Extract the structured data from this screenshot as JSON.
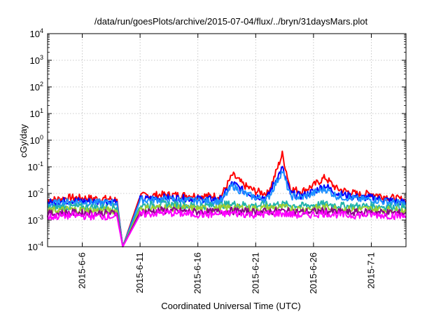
{
  "chart_data": {
    "type": "line",
    "title": "/data/run/goesPlots/archive/2015-07-04/flux/../bryn/31daysMars.plot",
    "xlabel": "Coordinated Universal Time (UTC)",
    "ylabel": "cGy/day",
    "yscale": "log",
    "ylim": [
      0.0001,
      10000
    ],
    "xlim": [
      "2015-06-03",
      "2015-07-04"
    ],
    "grid": true,
    "legend": "none",
    "x_ticks": [
      "2015-6-6",
      "2015-6-11",
      "2015-6-16",
      "2015-6-21",
      "2015-6-26",
      "2015-7-1"
    ],
    "y_ticks": [
      {
        "value": 0.0001,
        "base": "10",
        "exp": "-4"
      },
      {
        "value": 0.001,
        "base": "10",
        "exp": "-3"
      },
      {
        "value": 0.01,
        "base": "10",
        "exp": "-2"
      },
      {
        "value": 0.1,
        "base": "10",
        "exp": "-1"
      },
      {
        "value": 1,
        "base": "10",
        "exp": "0"
      },
      {
        "value": 10,
        "base": "10",
        "exp": "1"
      },
      {
        "value": 100,
        "base": "10",
        "exp": "2"
      },
      {
        "value": 1000,
        "base": "10",
        "exp": "3"
      },
      {
        "value": 10000,
        "base": "10",
        "exp": "4"
      }
    ],
    "series": [
      {
        "color": "#ff0000",
        "x": [
          "2015-06-03",
          "2015-06-05",
          "2015-06-07",
          "2015-06-09",
          "2015-06-09.5",
          "2015-06-11",
          "2015-06-13",
          "2015-06-15",
          "2015-06-17",
          "2015-06-18",
          "2015-06-19",
          "2015-06-20",
          "2015-06-21",
          "2015-06-22",
          "2015-06-22.5",
          "2015-06-23.3",
          "2015-06-24",
          "2015-06-25",
          "2015-06-26",
          "2015-06-27",
          "2015-06-28",
          "2015-06-30",
          "2015-07-01",
          "2015-07-02",
          "2015-07-04"
        ],
        "y": [
          0.0055,
          0.007,
          0.0065,
          0.006,
          0.0001,
          0.008,
          0.009,
          0.0085,
          0.008,
          0.008,
          0.05,
          0.02,
          0.012,
          0.01,
          0.03,
          0.3,
          0.015,
          0.012,
          0.02,
          0.04,
          0.015,
          0.009,
          0.01,
          0.008,
          0.0055
        ]
      },
      {
        "color": "#0000ff",
        "x": [
          "2015-06-03",
          "2015-06-05",
          "2015-06-07",
          "2015-06-09",
          "2015-06-09.5",
          "2015-06-11",
          "2015-06-13",
          "2015-06-15",
          "2015-06-17",
          "2015-06-18",
          "2015-06-19",
          "2015-06-20",
          "2015-06-21",
          "2015-06-22",
          "2015-06-22.5",
          "2015-06-23.3",
          "2015-06-24",
          "2015-06-25",
          "2015-06-26",
          "2015-06-27",
          "2015-06-28",
          "2015-06-30",
          "2015-07-01",
          "2015-07-02",
          "2015-07-04"
        ],
        "y": [
          0.0045,
          0.0055,
          0.005,
          0.005,
          0.0001,
          0.006,
          0.007,
          0.0065,
          0.006,
          0.006,
          0.025,
          0.012,
          0.008,
          0.007,
          0.02,
          0.09,
          0.01,
          0.008,
          0.012,
          0.02,
          0.01,
          0.007,
          0.007,
          0.006,
          0.0045
        ]
      },
      {
        "color": "#1e90ff",
        "x": [
          "2015-06-03",
          "2015-06-05",
          "2015-06-07",
          "2015-06-09",
          "2015-06-09.5",
          "2015-06-11",
          "2015-06-13",
          "2015-06-15",
          "2015-06-17",
          "2015-06-18",
          "2015-06-19",
          "2015-06-20",
          "2015-06-21",
          "2015-06-22",
          "2015-06-22.5",
          "2015-06-23.3",
          "2015-06-24",
          "2015-06-25",
          "2015-06-26",
          "2015-06-27",
          "2015-06-28",
          "2015-06-30",
          "2015-07-01",
          "2015-07-02",
          "2015-07-04"
        ],
        "y": [
          0.004,
          0.005,
          0.0045,
          0.0045,
          0.0001,
          0.0055,
          0.006,
          0.0055,
          0.005,
          0.005,
          0.02,
          0.01,
          0.007,
          0.006,
          0.015,
          0.07,
          0.008,
          0.007,
          0.01,
          0.015,
          0.008,
          0.006,
          0.006,
          0.005,
          0.004
        ]
      },
      {
        "color": "#20b2aa",
        "x": [
          "2015-06-03",
          "2015-06-05",
          "2015-06-07",
          "2015-06-09",
          "2015-06-09.5",
          "2015-06-11",
          "2015-06-13",
          "2015-06-15",
          "2015-06-17",
          "2015-06-19",
          "2015-06-21",
          "2015-06-23",
          "2015-06-25",
          "2015-06-27",
          "2015-06-29",
          "2015-07-01",
          "2015-07-04"
        ],
        "y": [
          0.0028,
          0.0032,
          0.003,
          0.003,
          0.0001,
          0.0035,
          0.004,
          0.0036,
          0.0034,
          0.004,
          0.0035,
          0.004,
          0.0034,
          0.004,
          0.0033,
          0.0034,
          0.003
        ]
      },
      {
        "color": "#9acd32",
        "x": [
          "2015-06-03",
          "2015-06-05",
          "2015-06-07",
          "2015-06-09",
          "2015-06-09.5",
          "2015-06-11",
          "2015-06-13",
          "2015-06-15",
          "2015-06-17",
          "2015-06-19",
          "2015-06-21",
          "2015-06-23",
          "2015-06-25",
          "2015-06-27",
          "2015-06-29",
          "2015-07-01",
          "2015-07-04"
        ],
        "y": [
          0.0022,
          0.0025,
          0.0023,
          0.0023,
          0.0001,
          0.0027,
          0.003,
          0.0028,
          0.0026,
          0.003,
          0.0027,
          0.003,
          0.0026,
          0.003,
          0.0025,
          0.0026,
          0.0023
        ]
      },
      {
        "color": "#8b008b",
        "x": [
          "2015-06-03",
          "2015-06-05",
          "2015-06-07",
          "2015-06-09",
          "2015-06-09.5",
          "2015-06-11",
          "2015-06-13",
          "2015-06-15",
          "2015-06-17",
          "2015-06-19",
          "2015-06-21",
          "2015-06-23",
          "2015-06-25",
          "2015-06-27",
          "2015-06-29",
          "2015-07-01",
          "2015-07-04"
        ],
        "y": [
          0.0017,
          0.0019,
          0.0018,
          0.0018,
          0.0001,
          0.002,
          0.0023,
          0.0021,
          0.002,
          0.0022,
          0.002,
          0.0022,
          0.002,
          0.0022,
          0.0019,
          0.002,
          0.0018
        ]
      },
      {
        "color": "#ff00ff",
        "x": [
          "2015-06-03",
          "2015-06-05",
          "2015-06-07",
          "2015-06-09",
          "2015-06-09.5",
          "2015-06-11",
          "2015-06-13",
          "2015-06-15",
          "2015-06-17",
          "2015-06-19",
          "2015-06-21",
          "2015-06-23",
          "2015-06-25",
          "2015-06-27",
          "2015-06-29",
          "2015-07-01",
          "2015-07-04"
        ],
        "y": [
          0.0013,
          0.0015,
          0.0014,
          0.0014,
          0.0001,
          0.0016,
          0.0019,
          0.0017,
          0.0016,
          0.0018,
          0.0016,
          0.0018,
          0.0015,
          0.0018,
          0.0015,
          0.0016,
          0.0014
        ]
      }
    ]
  }
}
